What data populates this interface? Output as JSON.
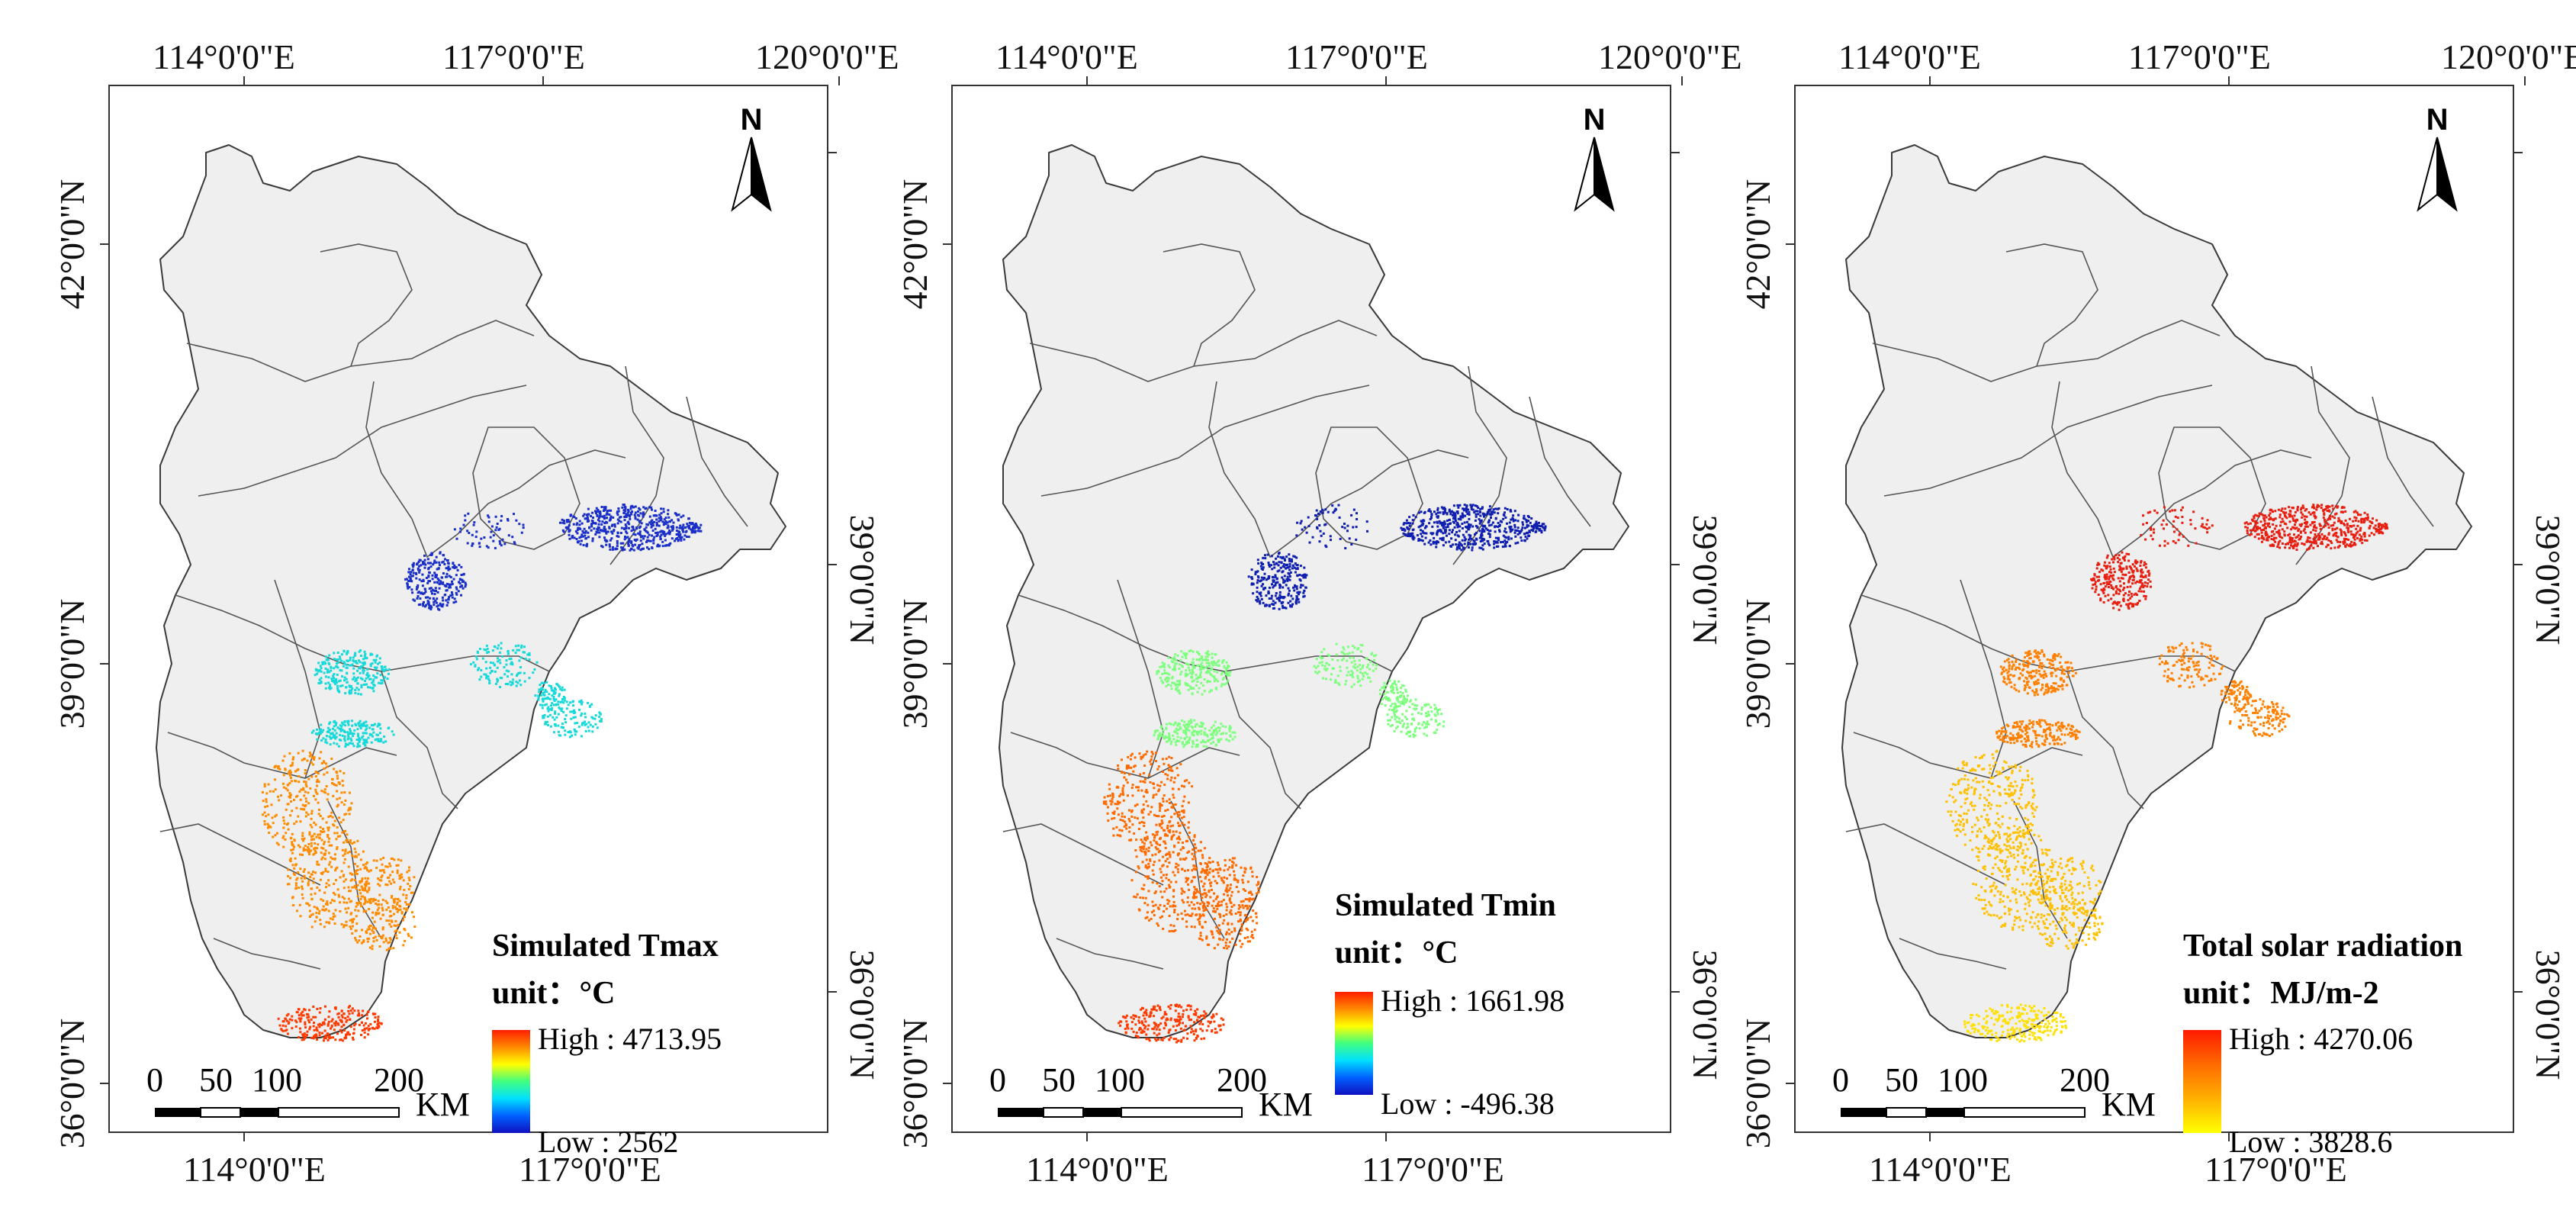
{
  "coordinates": {
    "top_lon": [
      "114°0'0\"E",
      "117°0'0\"E",
      "120°0'0\"E"
    ],
    "bottom_lon": [
      "114°0'0\"E",
      "117°0'0\"E"
    ],
    "left_lat": [
      "42°0'0\"N",
      "39°0'0\"N",
      "36°0'0\"N"
    ],
    "right_lat": [
      "39°0'0\"N",
      "36°0'0\"N"
    ]
  },
  "north_label": "N",
  "scale_bar": {
    "ticks": [
      "0",
      "50",
      "100",
      "200"
    ],
    "unit": "KM"
  },
  "panels": [
    {
      "legend_title": "Simulated Tmax",
      "unit_label": "unit：°C",
      "high": "High : 4713.95",
      "low": "Low : 2562",
      "ramp": [
        "#ff1e00",
        "#ff8a00",
        "#ffff00",
        "#40ff80",
        "#00e0ff",
        "#0060ff",
        "#1010c0"
      ],
      "cluster_colors": {
        "north": "#1a2fc8",
        "central": "#17d9d9",
        "south": "#ff8c00",
        "tip": "#ff3a00"
      }
    },
    {
      "legend_title": "Simulated Tmin",
      "unit_label": "unit：°C",
      "high": "High : 1661.98",
      "low": "Low : -496.38",
      "ramp": [
        "#ff1e00",
        "#ff8a00",
        "#ffff00",
        "#40ff80",
        "#00e0ff",
        "#0060ff",
        "#1010c0"
      ],
      "cluster_colors": {
        "north": "#0f1fb0",
        "central": "#7fff7f",
        "south": "#ff6a00",
        "tip": "#ff3a00"
      }
    },
    {
      "legend_title": "Total solar radiation",
      "unit_label": "unit：MJ/m-2",
      "high": "High : 4270.06",
      "low": "Low : 3828.6",
      "ramp": [
        "#ff1a00",
        "#ff6a00",
        "#ffb000",
        "#ffff00"
      ],
      "cluster_colors": {
        "north": "#e81e10",
        "central": "#ff8000",
        "south": "#ffc000",
        "tip": "#ffe000"
      }
    }
  ]
}
